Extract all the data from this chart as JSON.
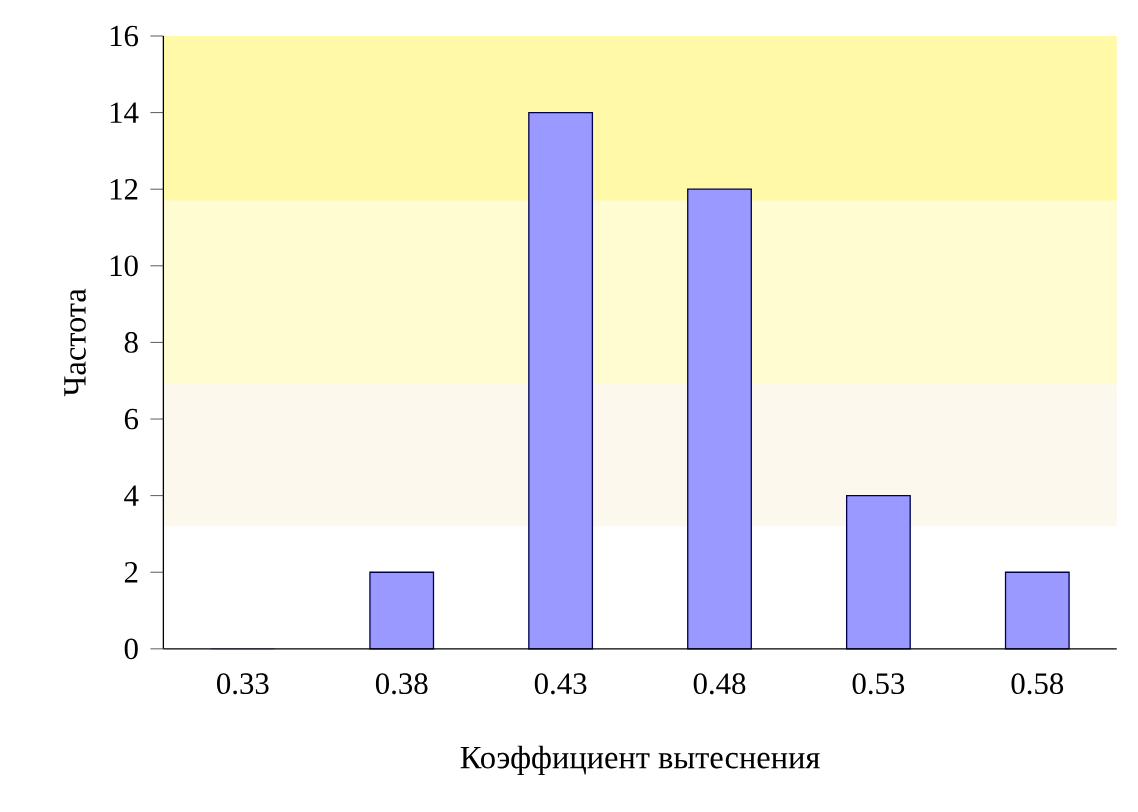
{
  "chart_data": {
    "type": "bar",
    "xlabel": "Коэффициент вытеснения",
    "ylabel": "Частота",
    "categories": [
      "0.33",
      "0.38",
      "0.43",
      "0.48",
      "0.53",
      "0.58"
    ],
    "values": [
      0,
      2,
      14,
      12,
      4,
      2
    ],
    "color": "#9999ff",
    "ylim": [
      0,
      16
    ],
    "yticks": [
      0,
      2,
      4,
      6,
      8,
      10,
      12,
      14,
      16
    ],
    "bands": [
      {
        "axis": "y",
        "from": 11.7,
        "to": 16,
        "color": "#fff9a8"
      },
      {
        "axis": "y",
        "from": 6.9,
        "to": 11.7,
        "color": "#fffcd2"
      },
      {
        "axis": "y",
        "from": 3.2,
        "to": 6.9,
        "color": "#fdf8ee"
      }
    ],
    "grid": false
  }
}
